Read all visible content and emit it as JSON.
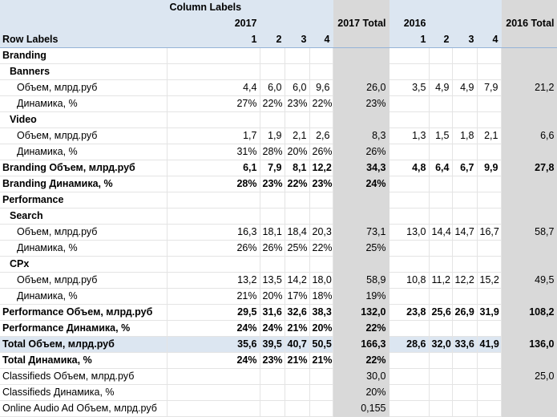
{
  "table": {
    "column_labels": "Column Labels",
    "row_labels": "Row Labels",
    "years": [
      {
        "year": "2017",
        "quarters": [
          "1",
          "2",
          "3",
          "4"
        ],
        "total": "2017 Total"
      },
      {
        "year": "2016",
        "quarters": [
          "1",
          "2",
          "3",
          "4"
        ],
        "total": "2016 Total"
      }
    ],
    "rows": [
      {
        "label": "Branding",
        "level": 0,
        "bold": true
      },
      {
        "label": "Banners",
        "level": 1,
        "bold": true
      },
      {
        "label": "Объем, млрд.руб",
        "level": 2,
        "cells": [
          "4,4",
          "6,0",
          "6,0",
          "9,6",
          "26,0",
          "3,5",
          "4,9",
          "4,9",
          "7,9",
          "21,2"
        ]
      },
      {
        "label": "Динамика, %",
        "level": 2,
        "cells": [
          "27%",
          "22%",
          "23%",
          "22%",
          "23%",
          null,
          null,
          null,
          null,
          null
        ]
      },
      {
        "label": "Video",
        "level": 1,
        "bold": true
      },
      {
        "label": "Объем, млрд.руб",
        "level": 2,
        "cells": [
          "1,7",
          "1,9",
          "2,1",
          "2,6",
          "8,3",
          "1,3",
          "1,5",
          "1,8",
          "2,1",
          "6,6"
        ]
      },
      {
        "label": "Динамика, %",
        "level": 2,
        "cells": [
          "31%",
          "28%",
          "20%",
          "26%",
          "26%",
          null,
          null,
          null,
          null,
          null
        ]
      },
      {
        "label": "Branding Объем, млрд.руб",
        "level": 0,
        "bold": true,
        "border_top": true,
        "cells": [
          "6,1",
          "7,9",
          "8,1",
          "12,2",
          "34,3",
          "4,8",
          "6,4",
          "6,7",
          "9,9",
          "27,8"
        ]
      },
      {
        "label": "Branding Динамика, %",
        "level": 0,
        "bold": true,
        "cells": [
          "28%",
          "23%",
          "22%",
          "23%",
          "24%",
          null,
          null,
          null,
          null,
          null
        ]
      },
      {
        "label": "Performance",
        "level": 0,
        "bold": true
      },
      {
        "label": "Search",
        "level": 1,
        "bold": true
      },
      {
        "label": "Объем, млрд.руб",
        "level": 2,
        "cells": [
          "16,3",
          "18,1",
          "18,4",
          "20,3",
          "73,1",
          "13,0",
          "14,4",
          "14,7",
          "16,7",
          "58,7"
        ]
      },
      {
        "label": "Динамика, %",
        "level": 2,
        "cells": [
          "26%",
          "26%",
          "25%",
          "22%",
          "25%",
          null,
          null,
          null,
          null,
          null
        ]
      },
      {
        "label": "CPx",
        "level": 1,
        "bold": true
      },
      {
        "label": "Объем, млрд.руб",
        "level": 2,
        "cells": [
          "13,2",
          "13,5",
          "14,2",
          "18,0",
          "58,9",
          "10,8",
          "11,2",
          "12,2",
          "15,2",
          "49,5"
        ]
      },
      {
        "label": "Динамика, %",
        "level": 2,
        "cells": [
          "21%",
          "20%",
          "17%",
          "18%",
          "19%",
          null,
          null,
          null,
          null,
          null
        ]
      },
      {
        "label": "Performance Объем, млрд.руб",
        "level": 0,
        "bold": true,
        "border_top": true,
        "cells": [
          "29,5",
          "31,6",
          "32,6",
          "38,3",
          "132,0",
          "23,8",
          "25,6",
          "26,9",
          "31,9",
          "108,2"
        ]
      },
      {
        "label": "Performance Динамика, %",
        "level": 0,
        "bold": true,
        "cells": [
          "24%",
          "24%",
          "21%",
          "20%",
          "22%",
          null,
          null,
          null,
          null,
          null
        ]
      },
      {
        "label": "Total Объем, млрд.руб",
        "level": 0,
        "bold": true,
        "highlight": true,
        "border_top": true,
        "cells": [
          "35,6",
          "39,5",
          "40,7",
          "50,5",
          "166,3",
          "28,6",
          "32,0",
          "33,6",
          "41,9",
          "136,0"
        ]
      },
      {
        "label": "Total Динамика, %",
        "level": 0,
        "bold": true,
        "cells": [
          "24%",
          "23%",
          "21%",
          "21%",
          "22%",
          null,
          null,
          null,
          null,
          null
        ]
      },
      {
        "label": "Classifieds Объем, млрд.руб",
        "level": 0,
        "cells": [
          null,
          null,
          null,
          null,
          "30,0",
          null,
          null,
          null,
          null,
          "25,0"
        ]
      },
      {
        "label": "Classifieds Динамика, %",
        "level": 0,
        "cells": [
          null,
          null,
          null,
          null,
          "20%",
          null,
          null,
          null,
          null,
          null
        ]
      },
      {
        "label": "Online Audio Ad Объем, млрд.руб",
        "level": 0,
        "cells": [
          null,
          null,
          null,
          null,
          "0,155",
          null,
          null,
          null,
          null,
          null
        ]
      }
    ]
  }
}
